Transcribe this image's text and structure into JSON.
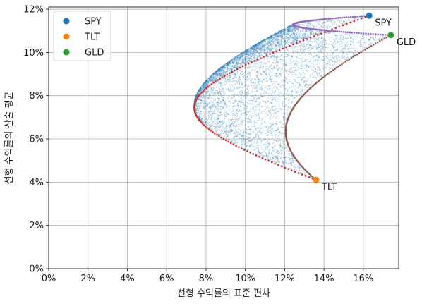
{
  "chart_data": {
    "type": "scatter",
    "xlabel": "선형 수익률의 표준 편차",
    "ylabel": "선형 수익률의 산술 평균",
    "xlim": [
      0,
      0.178
    ],
    "ylim": [
      0,
      0.121
    ],
    "xticks": [
      0,
      0.02,
      0.04,
      0.06,
      0.08,
      0.1,
      0.12,
      0.14,
      0.16
    ],
    "xtick_labels": [
      "0%",
      "2%",
      "4%",
      "6%",
      "8%",
      "10%",
      "12%",
      "14%",
      "16%"
    ],
    "yticks": [
      0,
      0.02,
      0.04,
      0.06,
      0.08,
      0.1,
      0.12
    ],
    "ytick_labels": [
      "0%",
      "2%",
      "4%",
      "6%",
      "8%",
      "10%",
      "12%"
    ],
    "grid": true,
    "legend_position": "upper-left",
    "assets": [
      {
        "name": "SPY",
        "x": 0.163,
        "y": 0.117,
        "color": "#1f77b4"
      },
      {
        "name": "TLT",
        "x": 0.136,
        "y": 0.041,
        "color": "#ff7f0e"
      },
      {
        "name": "GLD",
        "x": 0.174,
        "y": 0.108,
        "color": "#2ca02c"
      }
    ],
    "random_portfolios": {
      "color": "#1f77b4",
      "count": 6000,
      "description_shown": "dense cloud of random portfolio points bounded by the three two-asset frontiers"
    },
    "frontiers": [
      {
        "pair": "SPY-TLT",
        "color": "#d62728",
        "a_sigma": 0.163,
        "a_mu": 0.117,
        "b_sigma": 0.136,
        "b_mu": 0.041,
        "rho": -0.5
      },
      {
        "pair": "SPY-GLD",
        "color": "#9467bd",
        "a_sigma": 0.163,
        "a_mu": 0.117,
        "b_sigma": 0.174,
        "b_mu": 0.108,
        "rho": 0.09
      },
      {
        "pair": "TLT-GLD",
        "color": "#8c564b",
        "a_sigma": 0.136,
        "a_mu": 0.041,
        "b_sigma": 0.174,
        "b_mu": 0.108,
        "rho": 0.28
      }
    ],
    "annotations": [
      {
        "text": "SPY",
        "x": 0.163,
        "y": 0.117
      },
      {
        "text": "TLT",
        "x": 0.136,
        "y": 0.041
      },
      {
        "text": "GLD",
        "x": 0.174,
        "y": 0.108
      }
    ]
  },
  "colors": {
    "grid": "#b0b0b0",
    "axis": "#000000",
    "background": "#ffffff"
  }
}
